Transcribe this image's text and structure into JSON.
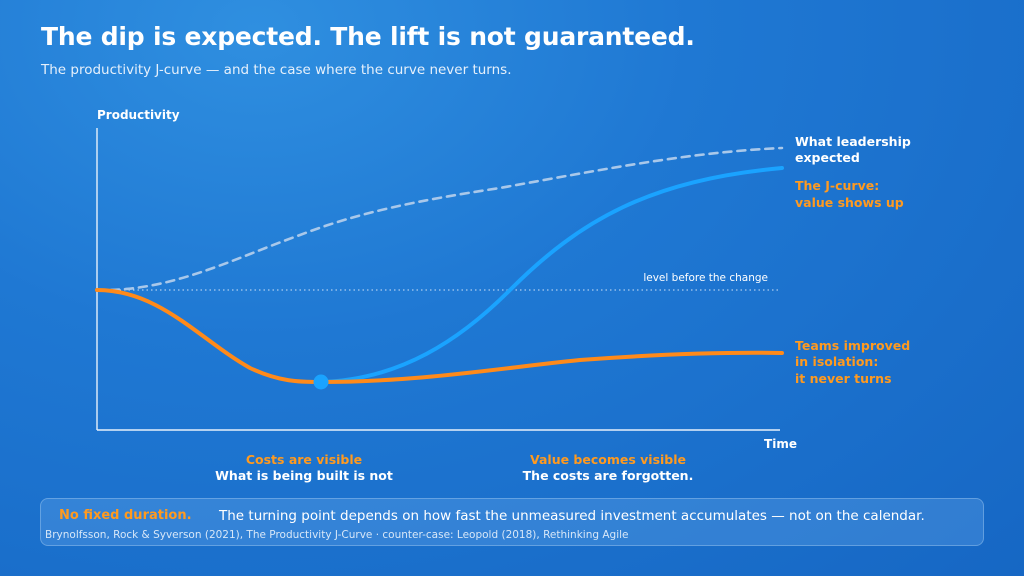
{
  "header": {
    "title": "The dip is expected. The lift is not guaranteed.",
    "subtitle": "The productivity J-curve — and the case where the curve never turns."
  },
  "chart": {
    "y_axis_label": "Productivity",
    "x_axis_label": "Time",
    "baseline_label": "level before the change",
    "series_labels": {
      "expected": [
        "What leadership",
        "expected"
      ],
      "jcurve": [
        "The J-curve:",
        "value shows up"
      ],
      "isolation": [
        "Teams improved",
        "in isolation:",
        "it never turns"
      ]
    }
  },
  "phase_notes": {
    "left": {
      "highlight": "Costs are visible",
      "text": "What is being built is not"
    },
    "right": {
      "highlight": "Value becomes visible",
      "text": "The costs are forgotten."
    }
  },
  "footer": {
    "highlight": "No fixed duration.",
    "text": "The turning point depends on how fast the unmeasured investment accumulates — not on the calendar.",
    "source": "Brynolfsson, Rock & Syverson (2021), The Productivity J-Curve · counter-case: Leopold (2018), Rethinking Agile"
  },
  "colors": {
    "orange": "#ff8a1a",
    "blue_line": "#1aa3ff",
    "expected_dashed": "#a9c8ea",
    "orange_text": "#ff9a1f"
  }
}
